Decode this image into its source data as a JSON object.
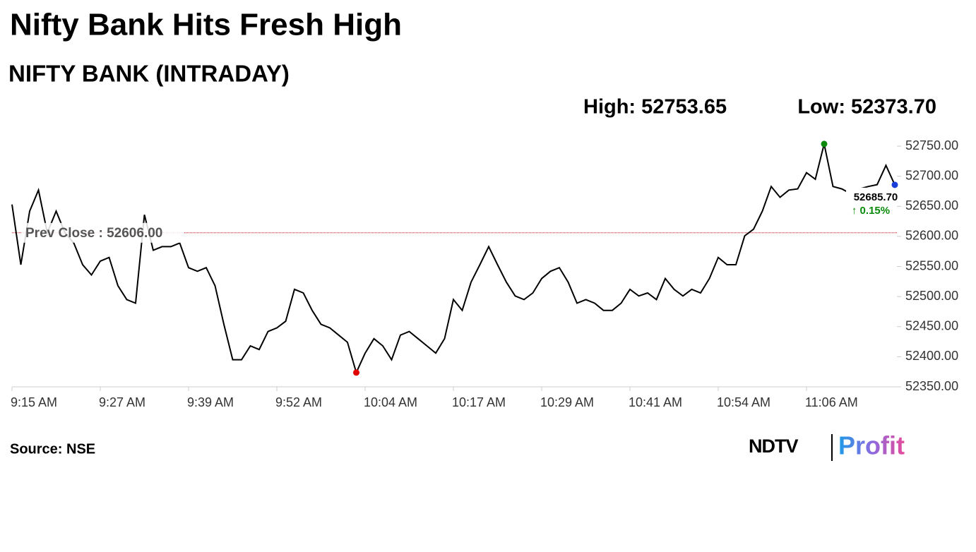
{
  "chart_data": {
    "type": "line",
    "title": "Nifty Bank Hits Fresh High",
    "subtitle": "NIFTY BANK (INTRADAY)",
    "high_text": "High: 52753.65",
    "low_text": "Low: 52373.70",
    "categories": [
      "9:15 AM",
      null,
      null,
      null,
      null,
      null,
      null,
      null,
      null,
      null,
      "9:27 AM",
      null,
      null,
      null,
      null,
      null,
      null,
      null,
      null,
      null,
      "9:39 AM",
      null,
      null,
      null,
      null,
      null,
      null,
      null,
      null,
      null,
      "9:52 AM",
      null,
      null,
      null,
      null,
      null,
      null,
      null,
      null,
      null,
      "10:04 AM",
      null,
      null,
      null,
      null,
      null,
      null,
      null,
      null,
      null,
      "10:17 AM",
      null,
      null,
      null,
      null,
      null,
      null,
      null,
      null,
      null,
      "10:29 AM",
      null,
      null,
      null,
      null,
      null,
      null,
      null,
      null,
      null,
      "10:41 AM",
      null,
      null,
      null,
      null,
      null,
      null,
      null,
      null,
      null,
      "10:54 AM",
      null,
      null,
      null,
      null,
      null,
      null,
      null,
      null,
      null,
      "11:06 AM",
      null,
      null,
      null,
      null,
      null,
      null,
      null,
      null,
      null,
      null
    ],
    "series": [
      {
        "name": "NIFTY BANK",
        "color": "#000000",
        "values": [
          52653,
          52553,
          52642,
          52677,
          52606,
          52642,
          52606,
          52589,
          52553,
          52536,
          52559,
          52565,
          52518,
          52495,
          52489,
          52636,
          52577,
          52583,
          52583,
          52589,
          52548,
          52542,
          52548,
          52518,
          52454,
          52395,
          52395,
          52418,
          52412,
          52442,
          52448,
          52459,
          52512,
          52506,
          52477,
          52454,
          52448,
          52436,
          52424,
          52373.7,
          52406,
          52430,
          52418,
          52395,
          52436,
          52442,
          52430,
          52418,
          52406,
          52430,
          52495,
          52477,
          52524,
          52553,
          52583,
          52553,
          52524,
          52501,
          52495,
          52506,
          52530,
          52542,
          52548,
          52524,
          52489,
          52495,
          52489,
          52477,
          52477,
          52489,
          52512,
          52501,
          52506,
          52495,
          52530,
          52512,
          52501,
          52512,
          52506,
          52530,
          52565,
          52553,
          52553,
          52601,
          52612,
          52642,
          52683,
          52665,
          52677,
          52679,
          52706,
          52695,
          52753.65,
          52683,
          52679,
          52671,
          52679,
          52683,
          52686,
          52718,
          52685.7
        ]
      }
    ],
    "ylim": [
      52350,
      52770
    ],
    "yticks": [
      {
        "value": 52350,
        "label": "52350.00"
      },
      {
        "value": 52400,
        "label": "52400.00"
      },
      {
        "value": 52450,
        "label": "52450.00"
      },
      {
        "value": 52500,
        "label": "52500.00"
      },
      {
        "value": 52550,
        "label": "52550.00"
      },
      {
        "value": 52600,
        "label": "52600.00"
      },
      {
        "value": 52650,
        "label": "52650.00"
      },
      {
        "value": 52700,
        "label": "52700.00"
      },
      {
        "value": 52750,
        "label": "52750.00"
      }
    ],
    "reference_line": {
      "value": 52606,
      "label": "Prev Close : 52606.00",
      "color": "#cc0000"
    },
    "last_value_label": "52685.70",
    "change_label": "↑ 0.15%",
    "change_color": "#0a8a0a",
    "high_color": "#0a8a0a",
    "low_color": "#e00000",
    "last_color": "#1a3fd8",
    "grid": false
  },
  "footer": {
    "source": "Source: NSE",
    "logo_left": "NDTV",
    "logo_right": "Profit"
  }
}
